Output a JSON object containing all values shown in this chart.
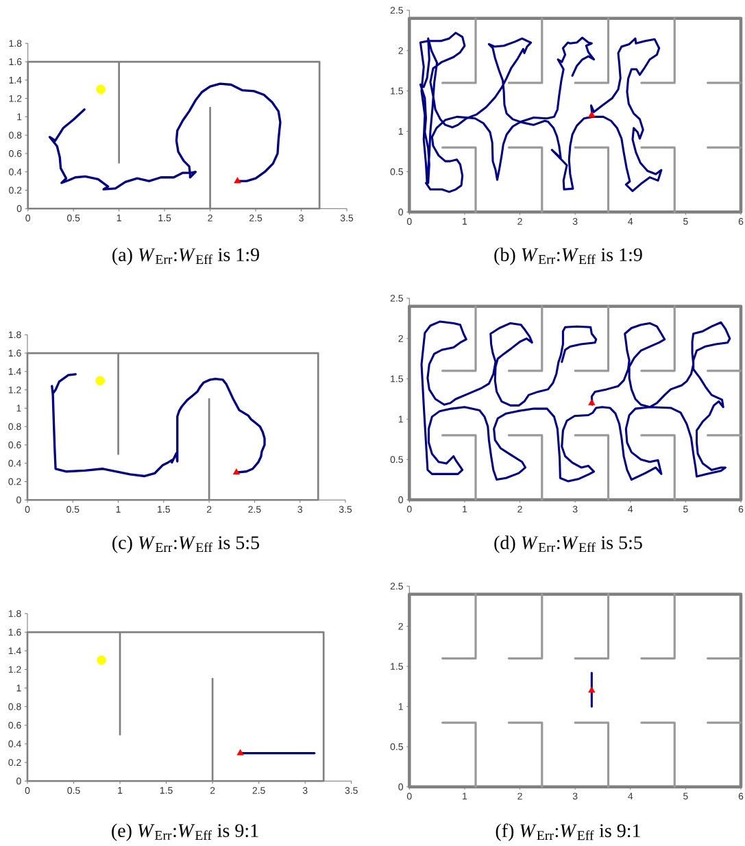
{
  "chart_data": [
    {
      "type": "line",
      "title": "(a) *W*$_{Err}$:*W*$_{Eff}$ is 1:9",
      "xlim": [
        0,
        3.5
      ],
      "xticks": [
        0,
        0.5,
        1,
        1.5,
        2,
        2.5,
        3,
        3.5
      ],
      "ylim": [
        0,
        1.8
      ],
      "yticks": [
        0,
        0.2,
        0.4,
        0.6,
        0.8,
        1,
        1.2,
        1.4,
        1.6,
        1.8
      ],
      "series": [
        {
          "color": "#808080",
          "x": [
            1,
            1,
            0,
            0,
            2,
            2,
            2,
            3.2,
            3.2,
            1
          ],
          "values": [
            0.5,
            1.6,
            1.6,
            0,
            0,
            1.1,
            0,
            0,
            1.6,
            1.6
          ]
        },
        {
          "color": "#000080",
          "x": [
            2.3,
            2.4,
            2.5,
            2.6,
            2.69,
            2.74,
            2.75,
            2.76,
            2.77,
            2.75,
            2.68,
            2.59,
            2.48,
            2.35,
            2.23,
            2.11,
            2.0,
            1.91,
            1.84,
            1.77,
            1.7,
            1.64,
            1.63,
            1.65,
            1.71,
            1.77,
            1.78,
            1.78,
            1.84,
            1.79,
            1.7,
            1.6,
            1.46,
            1.33,
            1.2,
            1.07,
            0.96,
            0.83,
            0.88,
            0.77,
            0.63,
            0.52,
            0.45,
            0.37,
            0.42,
            0.36,
            0.35,
            0.32,
            0.24,
            0.3,
            0.39,
            0.5,
            0.62
          ],
          "values": [
            0.3,
            0.3,
            0.33,
            0.4,
            0.49,
            0.6,
            0.75,
            0.85,
            0.94,
            1.06,
            1.16,
            1.24,
            1.28,
            1.29,
            1.35,
            1.36,
            1.33,
            1.27,
            1.18,
            1.06,
            0.96,
            0.85,
            0.74,
            0.62,
            0.52,
            0.46,
            0.38,
            0.34,
            0.4,
            0.39,
            0.39,
            0.34,
            0.34,
            0.3,
            0.33,
            0.29,
            0.22,
            0.21,
            0.24,
            0.32,
            0.35,
            0.34,
            0.31,
            0.28,
            0.33,
            0.44,
            0.56,
            0.68,
            0.78,
            0.74,
            0.88,
            0.97,
            1.08
          ]
        },
        {
          "type": "scatter",
          "color": "#ffff00",
          "marker": "circle",
          "x": [
            0.8
          ],
          "values": [
            1.3
          ]
        },
        {
          "type": "scatter",
          "color": "#ff0000",
          "marker": "triangle",
          "x": [
            2.3
          ],
          "values": [
            0.3
          ]
        }
      ]
    },
    {
      "type": "line",
      "title": "(b) *W*$_{Err}$:*W*$_{Eff}$ is 1:9",
      "xlim": [
        0,
        6
      ],
      "xticks": [
        0,
        1,
        2,
        3,
        4,
        5,
        6
      ],
      "ylim": [
        0,
        2.5
      ],
      "yticks": [
        0,
        0.5,
        1,
        1.5,
        2,
        2.5
      ],
      "series": [
        {
          "color": "#808080",
          "x": [
            0,
            0,
            6,
            6,
            0,
            0
          ],
          "values": [
            0,
            2.4,
            2.4,
            0,
            0,
            2.4
          ]
        },
        {
          "color": "#999999",
          "x": [
            1.2,
            1.2,
            0.6
          ],
          "values": [
            2.4,
            1.6,
            1.6
          ]
        },
        {
          "color": "#999999",
          "x": [
            1.2,
            1.2,
            0.6
          ],
          "values": [
            0,
            0.8,
            0.8
          ]
        },
        {
          "color": "#999999",
          "x": [
            2.4,
            2.4,
            1.8
          ],
          "values": [
            2.4,
            1.6,
            1.6
          ]
        },
        {
          "color": "#999999",
          "x": [
            2.4,
            2.4,
            1.8
          ],
          "values": [
            0,
            0.8,
            0.8
          ]
        },
        {
          "color": "#999999",
          "x": [
            3.6,
            3.6,
            3
          ],
          "values": [
            2.4,
            1.6,
            1.6
          ]
        },
        {
          "color": "#999999",
          "x": [
            3.6,
            3.6,
            3
          ],
          "values": [
            0,
            0.8,
            0.8
          ]
        },
        {
          "color": "#999999",
          "x": [
            4.8,
            4.8,
            4.2
          ],
          "values": [
            2.4,
            1.6,
            1.6
          ]
        },
        {
          "color": "#999999",
          "x": [
            4.8,
            4.8,
            4.2
          ],
          "values": [
            0,
            0.8,
            0.8
          ]
        },
        {
          "color": "#999999",
          "x": [
            6,
            5.4
          ],
          "values": [
            1.6,
            1.6
          ]
        },
        {
          "color": "#999999",
          "x": [
            6,
            5.4
          ],
          "values": [
            0.8,
            0.8
          ]
        },
        {
          "color": "#000080",
          "x": [
            3.31,
            3.29,
            3.34,
            3.51,
            3.67,
            3.78,
            3.82,
            3.8,
            3.78,
            3.84,
            3.98,
            4.09,
            4.1,
            4.27,
            4.44,
            4.52,
            4.48,
            4.35,
            4.25,
            4.17,
            4.11,
            4.02,
            3.96,
            3.94,
            3.97,
            4.06,
            4.17,
            4.23,
            4.17,
            4.13,
            4.06,
            4.04,
            4.1,
            4.18,
            4.31,
            4.46,
            4.56,
            4.5,
            4.35,
            4.21,
            4.04,
            3.92,
            3.99,
            3.93,
            3.88,
            3.84,
            3.76,
            3.65,
            3.51,
            3.32,
            3.16,
            3.03,
            2.95,
            2.91,
            2.89,
            2.91,
            2.96,
            2.8,
            2.79,
            2.85,
            2.58,
            2.74,
            2.71,
            2.67,
            2.61,
            2.51,
            2.45,
            2.25,
            2.04,
            1.87,
            1.76,
            1.72,
            1.71,
            1.69,
            1.62,
            1.55,
            1.51,
            1.44,
            1.54,
            1.71,
            1.91,
            2.04,
            2.13,
            2.2,
            2.13,
            2.08,
            2.06,
            1.96,
            1.84,
            1.76,
            1.67,
            1.55,
            1.39,
            1.22,
            1.03,
            0.88,
            0.78,
            0.65,
            0.56,
            0.47,
            0.43,
            0.38,
            0.43,
            0.59,
            0.8,
            0.92,
            1.0,
            0.96,
            0.84,
            0.72,
            0.57,
            0.34,
            0.2,
            0.26,
            0.22,
            0.28,
            0.26,
            0.3,
            0.32,
            0.36,
            0.38,
            0.42,
            0.45,
            0.5,
            0.4,
            0.34,
            0.36,
            0.32,
            0.26,
            0.2,
            0.28,
            0.3,
            0.28,
            0.34,
            0.36,
            0.34,
            0.3,
            0.38,
            0.59,
            0.72,
            0.84,
            0.94,
            0.96,
            0.92,
            0.86,
            0.74,
            0.65,
            0.53,
            0.43,
            0.41,
            0.49,
            0.65,
            0.86,
            1.03,
            1.19,
            1.34,
            1.46,
            1.5,
            1.51,
            1.56,
            1.59,
            1.63,
            1.67,
            1.7,
            1.76,
            1.87,
            2.02,
            2.25,
            2.49,
            2.62,
            2.68,
            2.71,
            2.75,
            2.79,
            2.69,
            2.76,
            2.82,
            2.78,
            2.87,
            2.91,
            3.03,
            3.13,
            3.24,
            3.3,
            3.2,
            3.24,
            3.34,
            3.24,
            3.13,
            3.03,
            2.95
          ],
          "values": [
            1.2,
            1.32,
            1.24,
            1.33,
            1.41,
            1.52,
            1.66,
            1.83,
            1.97,
            2.05,
            2.08,
            2.15,
            2.09,
            2.12,
            2.14,
            2.03,
            1.95,
            1.89,
            1.78,
            1.7,
            1.77,
            1.77,
            1.65,
            1.49,
            1.34,
            1.22,
            1.15,
            1.02,
            0.91,
            0.99,
            1.04,
            0.9,
            0.74,
            0.61,
            0.51,
            0.47,
            0.52,
            0.39,
            0.43,
            0.36,
            0.26,
            0.34,
            0.38,
            0.55,
            0.74,
            0.91,
            1.04,
            1.13,
            1.18,
            1.18,
            1.16,
            1.07,
            0.96,
            0.82,
            0.65,
            0.47,
            0.29,
            0.28,
            0.39,
            0.58,
            0.77,
            0.67,
            0.82,
            0.94,
            1.04,
            1.12,
            1.13,
            1.08,
            1.11,
            1.15,
            1.22,
            1.33,
            1.49,
            1.63,
            1.76,
            1.91,
            2.03,
            2.08,
            2.05,
            2.06,
            2.11,
            2.15,
            2.12,
            2.1,
            2.05,
            1.97,
            2.02,
            1.9,
            1.78,
            1.66,
            1.54,
            1.42,
            1.3,
            1.21,
            1.16,
            1.08,
            1.05,
            1.08,
            1.15,
            1.27,
            1.44,
            1.61,
            1.78,
            1.86,
            1.92,
            1.98,
            2.06,
            2.17,
            2.22,
            2.15,
            2.12,
            2.12,
            2.1,
            1.8,
            1.5,
            1.2,
            0.9,
            0.6,
            0.36,
            0.7,
            1.0,
            1.3,
            1.6,
            1.85,
            2.0,
            2.15,
            1.89,
            1.66,
            1.55,
            1.58,
            1.41,
            1.16,
            0.99,
            0.79,
            0.59,
            0.36,
            0.36,
            0.28,
            0.28,
            0.25,
            0.28,
            0.33,
            0.45,
            0.59,
            0.65,
            0.63,
            0.63,
            0.7,
            0.82,
            0.93,
            1.04,
            1.14,
            1.18,
            1.17,
            1.16,
            1.1,
            0.99,
            0.86,
            0.63,
            0.52,
            0.4,
            0.54,
            0.7,
            0.84,
            0.96,
            1.06,
            1.12,
            1.17,
            1.16,
            1.18,
            1.27,
            1.44,
            1.63,
            1.77,
            1.89,
            1.86,
            1.95,
            2.03,
            2.1,
            2.09,
            2.1,
            2.16,
            2.1,
            2.09,
            2.06,
            1.98,
            1.89,
            1.93,
            1.89,
            1.81,
            1.69
          ]
        },
        {
          "type": "scatter",
          "color": "#ff0000",
          "marker": "triangle",
          "x": [
            3.3
          ],
          "values": [
            1.2
          ]
        }
      ]
    },
    {
      "type": "line",
      "title": "(c) *W*$_{Err}$:*W*$_{Eff}$ is 5:5",
      "xlim": [
        0,
        3.5
      ],
      "xticks": [
        0,
        0.5,
        1,
        1.5,
        2,
        2.5,
        3,
        3.5
      ],
      "ylim": [
        0,
        1.8
      ],
      "yticks": [
        0,
        0.2,
        0.4,
        0.6,
        0.8,
        1,
        1.2,
        1.4,
        1.6,
        1.8
      ],
      "series": [
        {
          "color": "#808080",
          "x": [
            1,
            1,
            0,
            0,
            2,
            2,
            2,
            3.2,
            3.2,
            1
          ],
          "values": [
            0.5,
            1.6,
            1.6,
            0,
            0,
            1.1,
            0,
            0,
            1.6,
            1.6
          ]
        },
        {
          "color": "#000080",
          "x": [
            2.3,
            2.41,
            2.48,
            2.54,
            2.57,
            2.58,
            2.61,
            2.61,
            2.59,
            2.56,
            2.51,
            2.46,
            2.43,
            2.33,
            2.26,
            2.19,
            2.15,
            2.07,
            2.01,
            1.94,
            1.9,
            1.87,
            1.81,
            1.76,
            1.7,
            1.67,
            1.65,
            1.65,
            1.64,
            1.59,
            1.6,
            1.55,
            1.49,
            1.4,
            1.29,
            1.13,
            0.83,
            0.63,
            0.43,
            0.31,
            0.3,
            0.29,
            0.28,
            0.27,
            0.28,
            0.31,
            0.35,
            0.45,
            0.53
          ],
          "values": [
            0.3,
            0.31,
            0.34,
            0.41,
            0.47,
            0.53,
            0.6,
            0.67,
            0.74,
            0.8,
            0.84,
            0.88,
            0.92,
            0.98,
            1.11,
            1.26,
            1.31,
            1.32,
            1.31,
            1.28,
            1.23,
            1.18,
            1.13,
            1.09,
            1.02,
            0.97,
            0.91,
            0.42,
            0.51,
            0.41,
            0.44,
            0.41,
            0.38,
            0.29,
            0.26,
            0.28,
            0.34,
            0.32,
            0.31,
            0.34,
            0.56,
            0.85,
            1.15,
            1.24,
            1.16,
            1.2,
            1.29,
            1.36,
            1.37
          ]
        },
        {
          "type": "scatter",
          "color": "#ffff00",
          "marker": "circle",
          "x": [
            0.8
          ],
          "values": [
            1.3
          ]
        },
        {
          "type": "scatter",
          "color": "#ff0000",
          "marker": "triangle",
          "x": [
            2.3
          ],
          "values": [
            0.3
          ]
        }
      ]
    },
    {
      "type": "line",
      "title": "(d) *W*$_{Err}$:*W*$_{Eff}$ is 5:5",
      "xlim": [
        0,
        6
      ],
      "xticks": [
        0,
        1,
        2,
        3,
        4,
        5,
        6
      ],
      "ylim": [
        0,
        2.5
      ],
      "yticks": [
        0,
        0.5,
        1,
        1.5,
        2,
        2.5
      ],
      "series": [
        {
          "color": "#808080",
          "x": [
            0,
            0,
            6,
            6,
            0,
            0
          ],
          "values": [
            0,
            2.4,
            2.4,
            0,
            0,
            2.4
          ]
        },
        {
          "color": "#999999",
          "x": [
            1.2,
            1.2,
            0.6
          ],
          "values": [
            2.4,
            1.6,
            1.6
          ]
        },
        {
          "color": "#999999",
          "x": [
            1.2,
            1.2,
            0.6
          ],
          "values": [
            0,
            0.8,
            0.8
          ]
        },
        {
          "color": "#999999",
          "x": [
            2.4,
            2.4,
            1.8
          ],
          "values": [
            2.4,
            1.6,
            1.6
          ]
        },
        {
          "color": "#999999",
          "x": [
            2.4,
            2.4,
            1.8
          ],
          "values": [
            0,
            0.8,
            0.8
          ]
        },
        {
          "color": "#999999",
          "x": [
            3.6,
            3.6,
            3
          ],
          "values": [
            2.4,
            1.6,
            1.6
          ]
        },
        {
          "color": "#999999",
          "x": [
            3.6,
            3.6,
            3
          ],
          "values": [
            0,
            0.8,
            0.8
          ]
        },
        {
          "color": "#999999",
          "x": [
            4.8,
            4.8,
            4.2
          ],
          "values": [
            2.4,
            1.6,
            1.6
          ]
        },
        {
          "color": "#999999",
          "x": [
            4.8,
            4.8,
            4.2
          ],
          "values": [
            0,
            0.8,
            0.8
          ]
        },
        {
          "color": "#999999",
          "x": [
            6,
            5.4
          ],
          "values": [
            1.6,
            1.6
          ]
        },
        {
          "color": "#999999",
          "x": [
            6,
            5.4
          ],
          "values": [
            0.8,
            0.8
          ]
        },
        {
          "color": "#000080",
          "x": [
            3.31,
            3.3,
            3.36,
            3.57,
            3.78,
            3.88,
            3.96,
            3.98,
            3.94,
            3.92,
            3.9,
            4.02,
            4.19,
            4.35,
            4.48,
            4.56,
            4.62,
            4.52,
            4.35,
            4.19,
            4.07,
            3.98,
            3.98,
            4.02,
            4.09,
            4.19,
            4.35,
            4.48,
            4.62,
            4.73,
            4.93,
            5.02,
            5.1,
            5.14,
            5.12,
            5.12,
            5.14,
            5.31,
            5.47,
            5.64,
            5.72,
            5.8,
            5.76,
            5.55,
            5.35,
            5.2,
            5.14,
            5.14,
            5.26,
            5.37,
            5.47,
            5.66,
            5.68,
            5.6,
            5.51,
            5.43,
            5.31,
            5.2,
            5.2,
            5.22,
            5.31,
            5.47,
            5.64,
            5.72,
            5.64,
            5.39,
            5.2,
            5.18,
            5.14,
            5.1,
            5.02,
            4.91,
            4.73,
            4.35,
            4.09,
            3.98,
            3.92,
            3.94,
            4.02,
            4.19,
            4.35,
            4.5,
            4.56,
            4.46,
            4.27,
            4.02,
            3.94,
            3.88,
            3.84,
            3.8,
            3.73,
            3.63,
            3.49,
            3.38,
            3.32,
            3.24,
            2.99,
            2.85,
            2.78,
            2.76,
            2.82,
            2.95,
            3.11,
            3.24,
            3.34,
            3.26,
            3.07,
            2.87,
            2.73,
            2.72,
            2.68,
            2.62,
            2.49,
            2.25,
            1.96,
            1.75,
            1.6,
            1.53,
            1.55,
            1.65,
            1.83,
            2.04,
            2.1,
            1.98,
            1.75,
            1.58,
            1.52,
            1.48,
            1.44,
            1.42,
            1.36,
            1.27,
            1.0,
            0.76,
            0.55,
            0.41,
            0.35,
            0.35,
            0.41,
            0.53,
            0.67,
            0.8,
            0.84,
            0.96,
            0.88,
            0.41,
            0.33,
            0.31,
            0.26,
            0.22,
            0.28,
            0.38,
            0.55,
            0.8,
            0.92,
            0.98,
            1.03,
            0.92,
            0.8,
            0.59,
            0.45,
            0.36,
            0.33,
            0.36,
            0.47,
            0.63,
            0.74,
            0.84,
            1.05,
            1.29,
            1.44,
            1.52,
            1.56,
            1.51,
            1.48,
            1.47,
            1.63,
            1.83,
            2.02,
            2.1,
            2.18,
            2.22,
            2.12,
            2.0,
            1.85,
            1.71,
            1.6,
            1.56,
            1.55,
            1.58,
            1.67,
            1.83,
            1.98,
            2.08,
            2.16,
            2.33,
            2.51,
            2.6,
            2.66,
            2.7,
            2.74,
            2.78,
            2.78,
            2.82,
            3.03,
            3.28,
            3.3,
            3.38,
            3.36,
            3.11,
            2.91,
            2.82,
            2.76
          ],
          "values": [
            1.18,
            1.28,
            1.34,
            1.37,
            1.41,
            1.48,
            1.62,
            1.73,
            1.85,
            1.96,
            2.06,
            2.13,
            2.17,
            2.19,
            2.15,
            2.06,
            1.99,
            1.95,
            1.9,
            1.85,
            1.76,
            1.65,
            1.51,
            1.37,
            1.25,
            1.18,
            1.15,
            1.2,
            1.3,
            1.37,
            1.42,
            1.47,
            1.56,
            1.68,
            1.82,
            1.96,
            2.06,
            2.09,
            2.15,
            2.2,
            2.12,
            2.0,
            1.95,
            1.93,
            1.9,
            1.85,
            1.73,
            1.62,
            1.51,
            1.39,
            1.3,
            1.24,
            1.15,
            1.22,
            1.17,
            1.05,
            0.97,
            0.86,
            0.71,
            0.57,
            0.45,
            0.37,
            0.4,
            0.4,
            0.36,
            0.32,
            0.29,
            0.4,
            0.57,
            0.77,
            0.94,
            1.08,
            1.14,
            1.15,
            1.13,
            1.05,
            0.88,
            0.71,
            0.59,
            0.5,
            0.47,
            0.49,
            0.32,
            0.4,
            0.33,
            0.25,
            0.37,
            0.54,
            0.77,
            0.94,
            1.07,
            1.14,
            1.15,
            1.14,
            1.08,
            1.05,
            1.04,
            0.98,
            0.86,
            0.66,
            0.54,
            0.46,
            0.4,
            0.42,
            0.35,
            0.32,
            0.26,
            0.23,
            0.27,
            0.52,
            0.88,
            1.03,
            1.13,
            1.13,
            1.1,
            1.07,
            1.01,
            0.88,
            0.74,
            0.64,
            0.56,
            0.47,
            0.4,
            0.33,
            0.27,
            0.25,
            0.37,
            0.54,
            0.74,
            0.91,
            1.03,
            1.11,
            1.15,
            1.13,
            1.1,
            1.03,
            0.88,
            0.71,
            0.57,
            0.47,
            0.45,
            0.54,
            0.49,
            0.37,
            0.32,
            0.32,
            0.37,
            0.6,
            1.17,
            1.68,
            2.07,
            2.16,
            2.21,
            2.19,
            2.17,
            2.06,
            1.99,
            1.95,
            1.89,
            1.86,
            1.81,
            1.68,
            1.51,
            1.37,
            1.25,
            1.18,
            1.2,
            1.25,
            1.31,
            1.38,
            1.44,
            1.56,
            1.71,
            1.82,
            1.93,
            2.06,
            2.13,
            2.19,
            2.17,
            2.1,
            2.02,
            1.95,
            2.0,
            1.96,
            1.88,
            1.81,
            1.75,
            1.65,
            1.48,
            1.34,
            1.22,
            1.17,
            1.17,
            1.22,
            1.3,
            1.34,
            1.37,
            1.45,
            1.56,
            1.71,
            1.79,
            1.93,
            2.09,
            2.14,
            2.15,
            2.14,
            2.06,
            1.99,
            1.95,
            1.93,
            1.9,
            1.86,
            1.71
          ]
        },
        {
          "type": "scatter",
          "color": "#ff0000",
          "marker": "triangle",
          "x": [
            3.3
          ],
          "values": [
            1.2
          ]
        }
      ]
    },
    {
      "type": "line",
      "title": "(e) *W*$_{Err}$:*W*$_{Eff}$ is 9:1",
      "xlim": [
        0,
        3.5
      ],
      "xticks": [
        0,
        0.5,
        1,
        1.5,
        2,
        2.5,
        3,
        3.5
      ],
      "ylim": [
        0,
        1.8
      ],
      "yticks": [
        0,
        0.2,
        0.4,
        0.6,
        0.8,
        1,
        1.2,
        1.4,
        1.6,
        1.8
      ],
      "series": [
        {
          "color": "#808080",
          "x": [
            1,
            1,
            0,
            0,
            2,
            2,
            2,
            3.2,
            3.2,
            1
          ],
          "values": [
            0.5,
            1.6,
            1.6,
            0,
            0,
            1.1,
            0,
            0,
            1.6,
            1.6
          ]
        },
        {
          "color": "#000080",
          "x": [
            2.3,
            3.1
          ],
          "values": [
            0.3,
            0.3
          ]
        },
        {
          "type": "scatter",
          "color": "#ffff00",
          "marker": "circle",
          "x": [
            0.8
          ],
          "values": [
            1.3
          ]
        },
        {
          "type": "scatter",
          "color": "#ff0000",
          "marker": "triangle",
          "x": [
            2.3
          ],
          "values": [
            0.3
          ]
        }
      ]
    },
    {
      "type": "line",
      "title": "(f) *W*$_{Err}$:*W*$_{Eff}$ is 9:1",
      "xlim": [
        0,
        6
      ],
      "xticks": [
        0,
        1,
        2,
        3,
        4,
        5,
        6
      ],
      "ylim": [
        0,
        2.5
      ],
      "yticks": [
        0,
        0.5,
        1,
        1.5,
        2,
        2.5
      ],
      "series": [
        {
          "color": "#808080",
          "x": [
            0,
            0,
            6,
            6,
            0,
            0
          ],
          "values": [
            0,
            2.4,
            2.4,
            0,
            0,
            2.4
          ]
        },
        {
          "color": "#999999",
          "x": [
            1.2,
            1.2,
            0.6
          ],
          "values": [
            2.4,
            1.6,
            1.6
          ]
        },
        {
          "color": "#999999",
          "x": [
            1.2,
            1.2,
            0.6
          ],
          "values": [
            0,
            0.8,
            0.8
          ]
        },
        {
          "color": "#999999",
          "x": [
            2.4,
            2.4,
            1.8
          ],
          "values": [
            2.4,
            1.6,
            1.6
          ]
        },
        {
          "color": "#999999",
          "x": [
            2.4,
            2.4,
            1.8
          ],
          "values": [
            0,
            0.8,
            0.8
          ]
        },
        {
          "color": "#999999",
          "x": [
            3.6,
            3.6,
            3
          ],
          "values": [
            2.4,
            1.6,
            1.6
          ]
        },
        {
          "color": "#999999",
          "x": [
            3.6,
            3.6,
            3
          ],
          "values": [
            0,
            0.8,
            0.8
          ]
        },
        {
          "color": "#999999",
          "x": [
            4.8,
            4.8,
            4.2
          ],
          "values": [
            2.4,
            1.6,
            1.6
          ]
        },
        {
          "color": "#999999",
          "x": [
            4.8,
            4.8,
            4.2
          ],
          "values": [
            0,
            0.8,
            0.8
          ]
        },
        {
          "color": "#999999",
          "x": [
            6,
            5.4
          ],
          "values": [
            1.6,
            1.6
          ]
        },
        {
          "color": "#999999",
          "x": [
            6,
            5.4
          ],
          "values": [
            0.8,
            0.8
          ]
        },
        {
          "color": "#000080",
          "x": [
            3.3,
            3.3
          ],
          "values": [
            1.0,
            1.42
          ]
        },
        {
          "type": "scatter",
          "color": "#ff0000",
          "marker": "triangle",
          "x": [
            3.3
          ],
          "values": [
            1.2
          ]
        }
      ]
    }
  ]
}
